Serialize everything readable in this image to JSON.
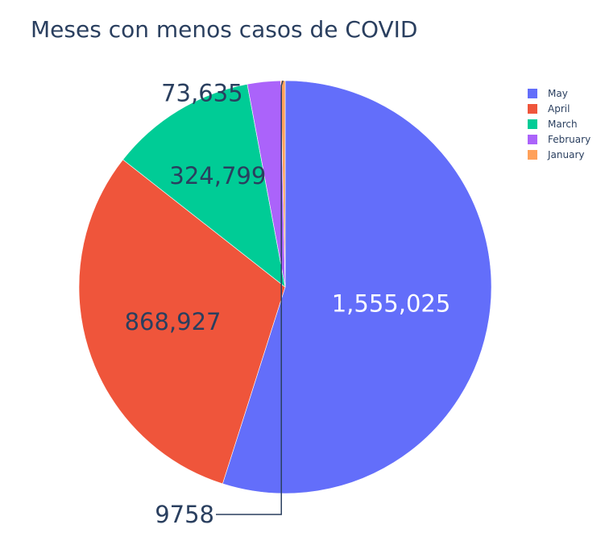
{
  "chart_data": {
    "type": "pie",
    "title": "Meses con menos casos de COVID",
    "categories": [
      "May",
      "April",
      "March",
      "February",
      "January"
    ],
    "values": [
      1555025,
      868927,
      324799,
      73635,
      9758
    ],
    "value_labels": [
      "1,555,025",
      "868,927",
      "324,799",
      "73,635",
      "9758"
    ],
    "colors": [
      "#636efa",
      "#EF553B",
      "#00cc96",
      "#ab63fa",
      "#FFA15A"
    ],
    "label_colors": [
      "#ffffff",
      "#2a3f5f",
      "#2a3f5f",
      "#2a3f5f",
      "#2a3f5f"
    ],
    "sort": "descending",
    "direction": "clockwise",
    "start_angle": "top",
    "legend_position": "top-right"
  }
}
